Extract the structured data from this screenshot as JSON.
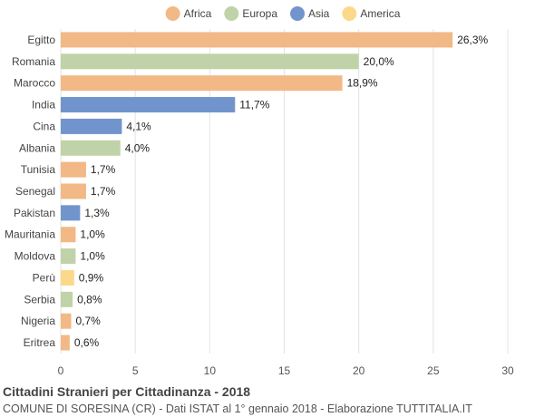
{
  "chart_data": {
    "type": "bar",
    "orientation": "horizontal",
    "title": "Cittadini Stranieri per Cittadinanza - 2018",
    "subtitle": "COMUNE DI SORESINA (CR) - Dati ISTAT al 1° gennaio 2018 - Elaborazione TUTTITALIA.IT",
    "xlabel": "",
    "ylabel": "",
    "xlim": [
      0,
      30
    ],
    "xticks": [
      0,
      5,
      10,
      15,
      20,
      25,
      30
    ],
    "grid": true,
    "legend_position": "top",
    "legend": [
      {
        "name": "Africa",
        "color": "#f2b885"
      },
      {
        "name": "Europa",
        "color": "#c0d3a8"
      },
      {
        "name": "Asia",
        "color": "#7294cc"
      },
      {
        "name": "America",
        "color": "#fcd98a"
      }
    ],
    "categories": [
      "Egitto",
      "Romania",
      "Marocco",
      "India",
      "Cina",
      "Albania",
      "Tunisia",
      "Senegal",
      "Pakistan",
      "Mauritania",
      "Moldova",
      "Perù",
      "Serbia",
      "Nigeria",
      "Eritrea"
    ],
    "values": [
      26.3,
      20.0,
      18.9,
      11.7,
      4.1,
      4.0,
      1.7,
      1.7,
      1.3,
      1.0,
      1.0,
      0.9,
      0.8,
      0.7,
      0.6
    ],
    "value_labels": [
      "26,3%",
      "20,0%",
      "18,9%",
      "11,7%",
      "4,1%",
      "4,0%",
      "1,7%",
      "1,7%",
      "1,3%",
      "1,0%",
      "1,0%",
      "0,9%",
      "0,8%",
      "0,7%",
      "0,6%"
    ],
    "continents": [
      "Africa",
      "Europa",
      "Africa",
      "Asia",
      "Asia",
      "Europa",
      "Africa",
      "Africa",
      "Asia",
      "Africa",
      "Europa",
      "America",
      "Europa",
      "Africa",
      "Africa"
    ]
  }
}
